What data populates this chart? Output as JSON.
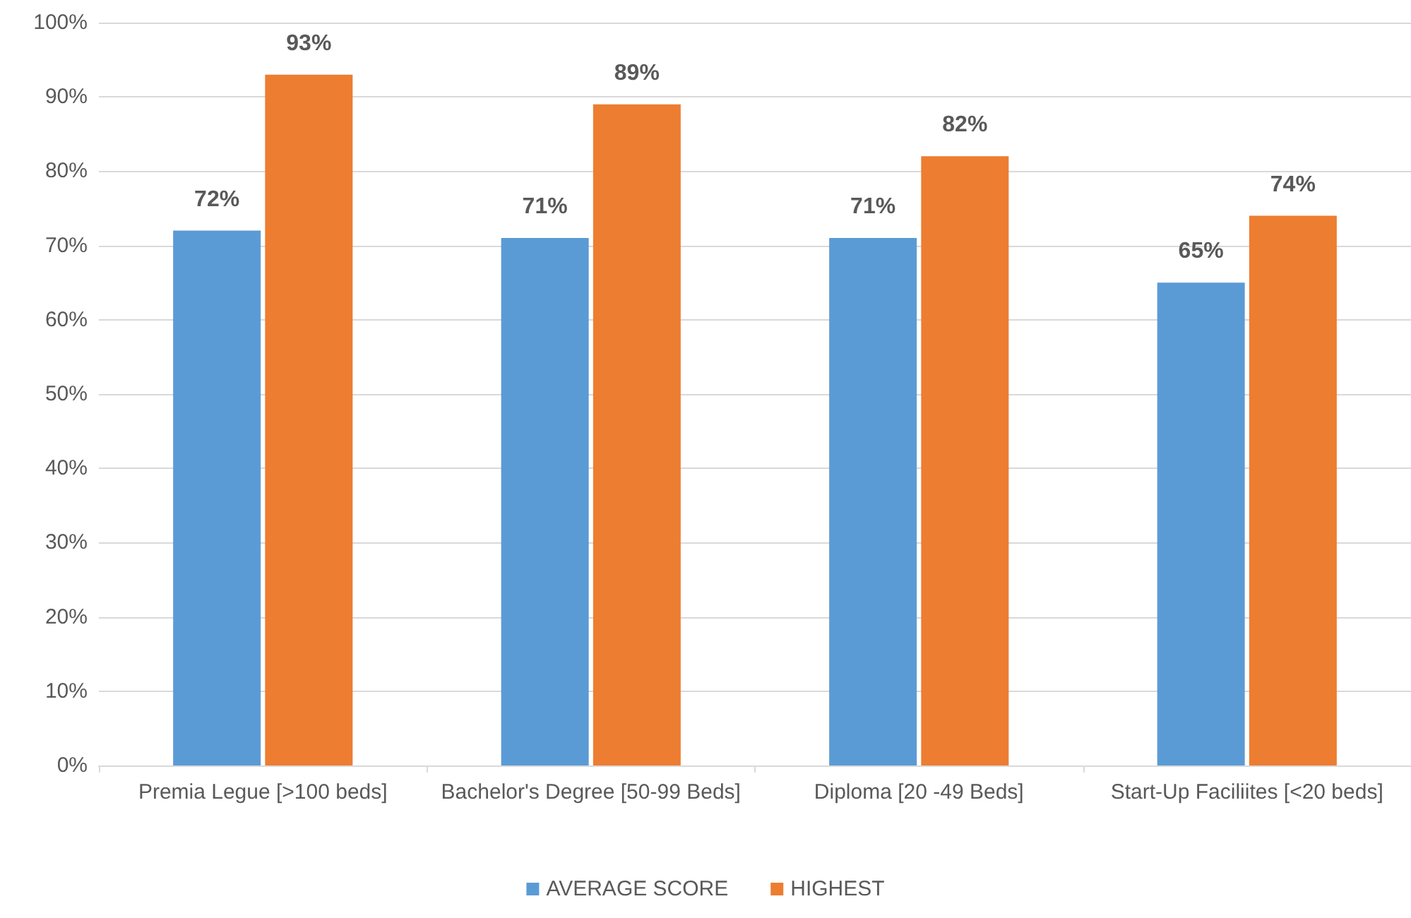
{
  "chart_data": {
    "type": "bar",
    "categories": [
      "Premia Legue [>100 beds]",
      "Bachelor's Degree [50-99 Beds]",
      "Diploma [20 -49 Beds]",
      "Start-Up Faciliites [<20 beds]"
    ],
    "series": [
      {
        "name": "AVERAGE SCORE",
        "color": "#5b9bd5",
        "values": [
          72,
          71,
          71,
          65
        ],
        "value_labels": [
          "72%",
          "71%",
          "71%",
          "65%"
        ]
      },
      {
        "name": "HIGHEST",
        "color": "#ed7d31",
        "values": [
          93,
          89,
          82,
          74
        ],
        "value_labels": [
          "93%",
          "89%",
          "82%",
          "74%"
        ]
      }
    ],
    "ylim": [
      0,
      100
    ],
    "yticks": [
      {
        "value": 0,
        "label": "0%"
      },
      {
        "value": 10,
        "label": "10%"
      },
      {
        "value": 20,
        "label": "20%"
      },
      {
        "value": 30,
        "label": "30%"
      },
      {
        "value": 40,
        "label": "40%"
      },
      {
        "value": 50,
        "label": "50%"
      },
      {
        "value": 60,
        "label": "60%"
      },
      {
        "value": 70,
        "label": "70%"
      },
      {
        "value": 80,
        "label": "80%"
      },
      {
        "value": 90,
        "label": "90%"
      },
      {
        "value": 100,
        "label": "100%"
      }
    ],
    "grid": "y",
    "legend": "bottom"
  }
}
